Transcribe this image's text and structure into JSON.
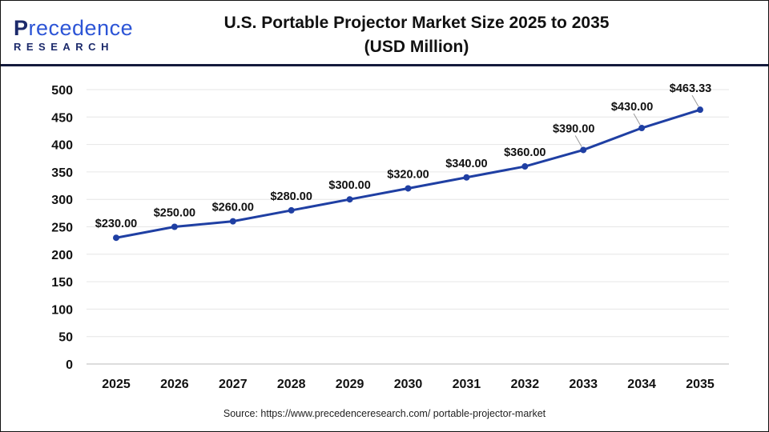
{
  "logo": {
    "line1_first": "P",
    "line1_rest": "recedence",
    "line2": "RESEARCH"
  },
  "title_line1": "U.S. Portable Projector Market Size 2025 to 2035",
  "title_line2": "(USD Million)",
  "source": "Source: https://www.precedenceresearch.com/ portable-projector-market",
  "colors": {
    "line": "#1f3fa3",
    "grid": "#e6e6e6",
    "header_rule": "#141a3c"
  },
  "chart_data": {
    "type": "line",
    "title": "U.S. Portable Projector Market Size 2025 to 2035 (USD Million)",
    "xlabel": "",
    "ylabel": "",
    "categories": [
      "2025",
      "2026",
      "2027",
      "2028",
      "2029",
      "2030",
      "2031",
      "2032",
      "2033",
      "2034",
      "2035"
    ],
    "values": [
      230,
      250,
      260,
      280,
      300,
      320,
      340,
      360,
      390,
      430,
      463.33
    ],
    "data_labels": [
      "$230.00",
      "$250.00",
      "$260.00",
      "$280.00",
      "$300.00",
      "$320.00",
      "$340.00",
      "$360.00",
      "$390.00",
      "$430.00",
      "$463.33"
    ],
    "ylim": [
      0,
      500
    ],
    "yticks": [
      0,
      50,
      100,
      150,
      200,
      250,
      300,
      350,
      400,
      450,
      500
    ],
    "grid": true,
    "legend": "none"
  }
}
